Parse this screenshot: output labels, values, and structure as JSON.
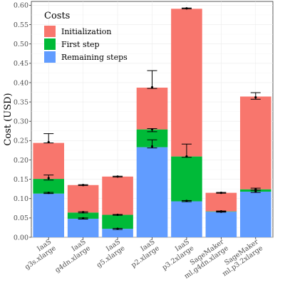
{
  "chart_data": {
    "type": "bar",
    "stacked": true,
    "title": "",
    "xlabel": "",
    "ylabel": "Cost (USD)",
    "ylim": [
      0,
      0.61
    ],
    "yticks": [
      0.0,
      0.05,
      0.1,
      0.15,
      0.2,
      0.25,
      0.3,
      0.35,
      0.4,
      0.45,
      0.5,
      0.55,
      0.6
    ],
    "ytick_labels": [
      "0.00",
      "0.05",
      "0.10",
      "0.15",
      "0.20",
      "0.25",
      "0.30",
      "0.35",
      "0.40",
      "0.45",
      "0.50",
      "0.55",
      "0.60"
    ],
    "grid": true,
    "legend_placement": "top-left",
    "legend_title": "Costs",
    "categories": [
      [
        "IaaS",
        "g3s.xlarge"
      ],
      [
        "IaaS",
        "g4dn.xlarge"
      ],
      [
        "IaaS",
        "g5.xlarge"
      ],
      [
        "IaaS",
        "p2.xlarge"
      ],
      [
        "IaaS",
        "p3.2xlarge"
      ],
      [
        "SageMaker",
        "ml.g4dn.xlarge"
      ],
      [
        "SageMaker",
        "ml.p3.2xlarge"
      ]
    ],
    "series": [
      {
        "name": "Remaining steps",
        "color": "#619cff",
        "values": [
          0.113,
          0.048,
          0.022,
          0.233,
          0.093,
          0.066,
          0.118
        ]
      },
      {
        "name": "First step",
        "color": "#00ba38",
        "values": [
          0.038,
          0.016,
          0.036,
          0.046,
          0.116,
          0.001,
          0.006
        ]
      },
      {
        "name": "Initialization",
        "color": "#f8766d",
        "values": [
          0.093,
          0.071,
          0.099,
          0.108,
          0.382,
          0.048,
          0.24
        ]
      }
    ],
    "legend_order": [
      "Initialization",
      "First step",
      "Remaining steps"
    ],
    "error_bars": {
      "Remaining steps": {
        "mean": [
          0.115,
          0.049,
          0.022,
          0.235,
          0.094,
          0.066,
          0.119
        ],
        "low": [
          0.113,
          0.047,
          0.02,
          0.231,
          0.092,
          0.065,
          0.116
        ],
        "high": [
          0.116,
          0.05,
          0.023,
          0.252,
          0.095,
          0.067,
          0.122
        ]
      },
      "First step": {
        "mean": [
          0.153,
          0.065,
          0.058,
          0.279,
          0.209,
          0.067,
          0.124
        ],
        "low": [
          0.148,
          0.063,
          0.057,
          0.273,
          0.207,
          0.066,
          0.122
        ],
        "high": [
          0.161,
          0.066,
          0.059,
          0.281,
          0.241,
          0.068,
          0.127
        ]
      },
      "Initialization": {
        "mean": [
          0.246,
          0.135,
          0.157,
          0.388,
          0.592,
          0.115,
          0.362
        ],
        "low": [
          0.244,
          0.134,
          0.156,
          0.385,
          0.591,
          0.114,
          0.357
        ],
        "high": [
          0.268,
          0.136,
          0.158,
          0.431,
          0.593,
          0.116,
          0.374
        ]
      }
    }
  }
}
